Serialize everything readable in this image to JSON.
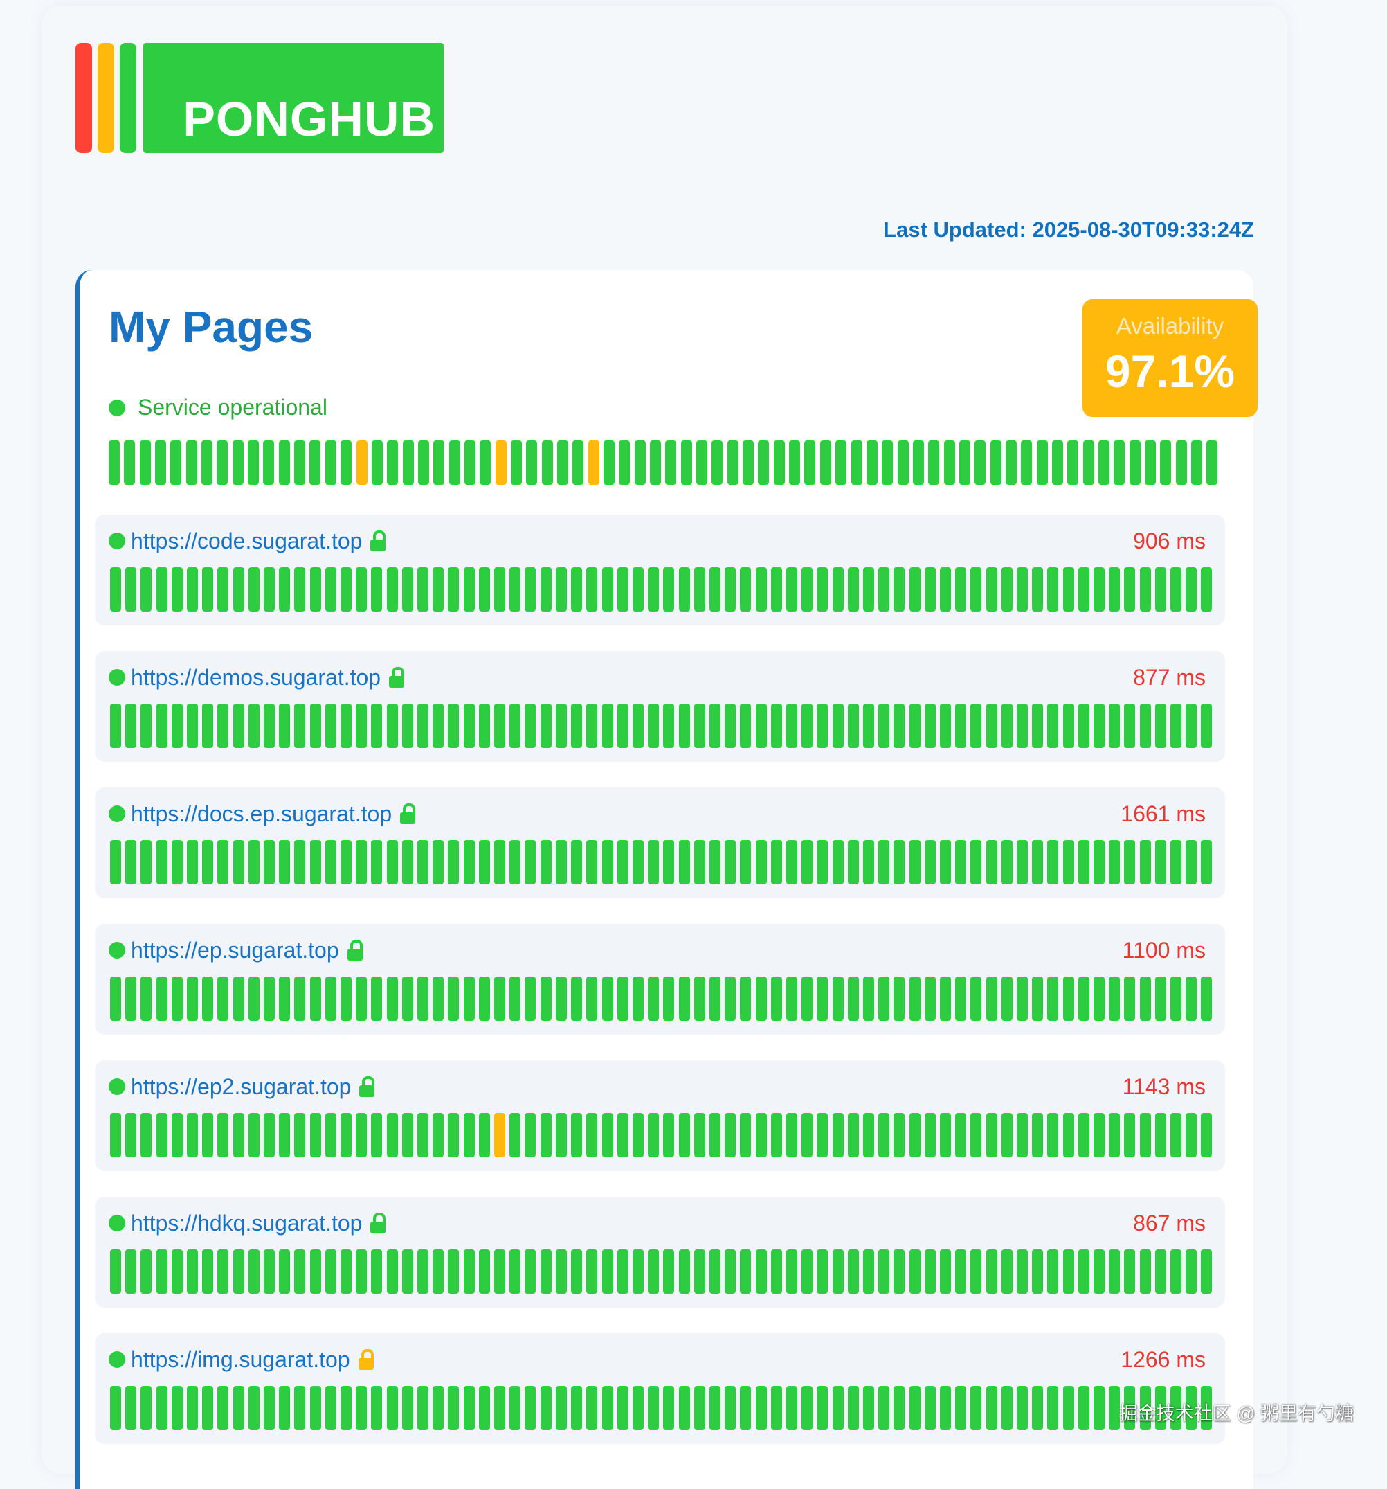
{
  "header": {
    "logo_text": "PONGHUB",
    "logo_bar_colors": [
      "#ff4136",
      "#ffb80c",
      "#2ecc40"
    ],
    "last_updated": "Last Updated: 2025-08-30T09:33:24Z"
  },
  "colors": {
    "up": "#2ecc40",
    "warn": "#ffb80c",
    "accent": "#1a73c2",
    "latency": "#e53935"
  },
  "group": {
    "title": "My Pages",
    "status_text": "Service operational",
    "availability_label": "Availability",
    "availability_value": "97.1%",
    "history_count": 72,
    "history_warn_indices": [
      16,
      25,
      31
    ]
  },
  "sites": [
    {
      "url": "https://code.sugarat.top",
      "ms": "906 ms",
      "lock": "green-lock-icon",
      "lock_color": "#2ecc40",
      "bar_count": 72,
      "warn_indices": []
    },
    {
      "url": "https://demos.sugarat.top",
      "ms": "877 ms",
      "lock": "green-lock-icon",
      "lock_color": "#2ecc40",
      "bar_count": 72,
      "warn_indices": []
    },
    {
      "url": "https://docs.ep.sugarat.top",
      "ms": "1661 ms",
      "lock": "green-lock-icon",
      "lock_color": "#2ecc40",
      "bar_count": 72,
      "warn_indices": []
    },
    {
      "url": "https://ep.sugarat.top",
      "ms": "1100 ms",
      "lock": "green-lock-icon",
      "lock_color": "#2ecc40",
      "bar_count": 72,
      "warn_indices": []
    },
    {
      "url": "https://ep2.sugarat.top",
      "ms": "1143 ms",
      "lock": "green-lock-icon",
      "lock_color": "#2ecc40",
      "bar_count": 72,
      "warn_indices": [
        25
      ]
    },
    {
      "url": "https://hdkq.sugarat.top",
      "ms": "867 ms",
      "lock": "green-lock-icon",
      "lock_color": "#2ecc40",
      "bar_count": 72,
      "warn_indices": []
    },
    {
      "url": "https://img.sugarat.top",
      "ms": "1266 ms",
      "lock": "orange-lock-icon",
      "lock_color": "#ffb80c",
      "bar_count": 72,
      "warn_indices": []
    }
  ],
  "watermark": "掘金技术社区 @ 粥里有勺糖"
}
